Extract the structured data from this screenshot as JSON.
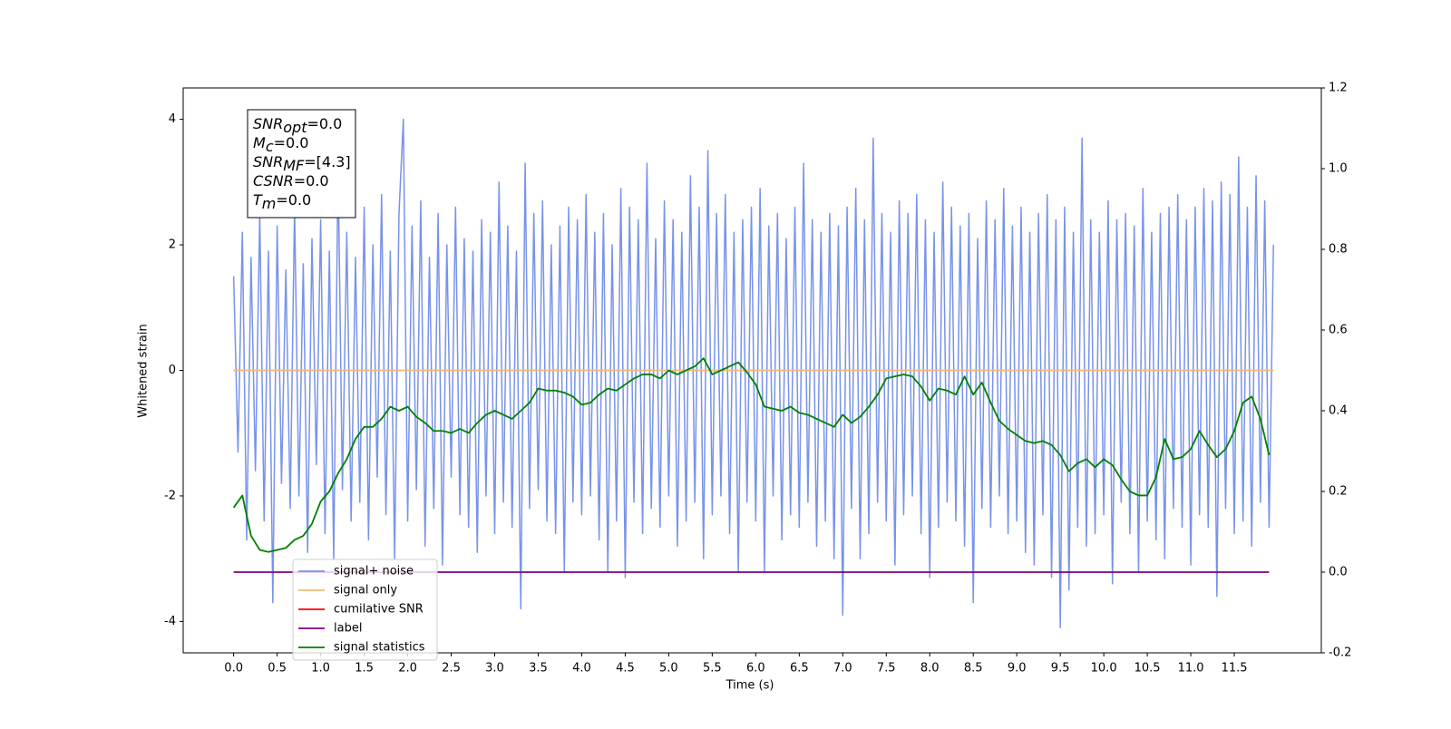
{
  "chart_data": {
    "type": "line",
    "xlabel": "Time (s)",
    "ylabel": "Whitened strain",
    "xlim": [
      -0.58,
      12.5
    ],
    "ylim": [
      -4.5,
      4.5
    ],
    "y2lim": [
      -0.2,
      1.2
    ],
    "xticks": [
      {
        "value": 0,
        "label": "0.0"
      },
      0.5,
      {
        "value": 1,
        "label": "1.0"
      },
      1.5,
      {
        "value": 2,
        "label": "2.0"
      },
      2.5,
      {
        "value": 3,
        "label": "3.0"
      },
      3.5,
      {
        "value": 4,
        "label": "4.0"
      },
      4.5,
      {
        "value": 5,
        "label": "5.0"
      },
      5.5,
      {
        "value": 6,
        "label": "6.0"
      },
      6.5,
      {
        "value": 7,
        "label": "7.0"
      },
      7.5,
      {
        "value": 8,
        "label": "8.0"
      },
      8.5,
      {
        "value": 9,
        "label": "9.0"
      },
      9.5,
      {
        "value": 10,
        "label": "10.0"
      },
      10.5,
      {
        "value": 11,
        "label": "11.0"
      },
      11.5
    ],
    "yticks": [
      -4,
      -2,
      0,
      2,
      4
    ],
    "y2ticks": [
      -0.2,
      {
        "value": 0,
        "label": "0.0"
      },
      0.2,
      0.4,
      0.6,
      0.8,
      {
        "value": 1,
        "label": "1.0"
      },
      1.2
    ],
    "grid": false,
    "annotation": [
      {
        "name": "SNR",
        "sub": "opt",
        "text": "=0.0"
      },
      {
        "name": "M",
        "sub": "c",
        "text": "=0.0"
      },
      {
        "name": "SNR",
        "sub": "MF",
        "text": "=[4.3]"
      },
      {
        "name": "CSNR",
        "text": "=0.0"
      },
      {
        "name": "T",
        "sub": "m",
        "text": "=0.0"
      }
    ],
    "series": [
      {
        "name": "signal+ noise",
        "color": "#7893e8",
        "x": [
          0,
          0.05,
          0.1,
          0.15,
          0.2,
          0.25,
          0.3,
          0.35,
          0.4,
          0.45,
          0.5,
          0.55,
          0.6,
          0.65,
          0.7,
          0.75,
          0.8,
          0.85,
          0.9,
          0.95,
          1,
          1.05,
          1.1,
          1.15,
          1.2,
          1.25,
          1.3,
          1.35,
          1.4,
          1.45,
          1.5,
          1.55,
          1.6,
          1.65,
          1.7,
          1.75,
          1.8,
          1.85,
          1.9,
          1.95,
          2,
          2.05,
          2.1,
          2.15,
          2.2,
          2.25,
          2.3,
          2.35,
          2.4,
          2.45,
          2.5,
          2.55,
          2.6,
          2.65,
          2.7,
          2.75,
          2.8,
          2.85,
          2.9,
          2.95,
          3,
          3.05,
          3.1,
          3.15,
          3.2,
          3.25,
          3.3,
          3.35,
          3.4,
          3.45,
          3.5,
          3.55,
          3.6,
          3.65,
          3.7,
          3.75,
          3.8,
          3.85,
          3.9,
          3.95,
          4,
          4.05,
          4.1,
          4.15,
          4.2,
          4.25,
          4.3,
          4.35,
          4.4,
          4.45,
          4.5,
          4.55,
          4.6,
          4.65,
          4.7,
          4.75,
          4.8,
          4.85,
          4.9,
          4.95,
          5,
          5.05,
          5.1,
          5.15,
          5.2,
          5.25,
          5.3,
          5.35,
          5.4,
          5.45,
          5.5,
          5.55,
          5.6,
          5.65,
          5.7,
          5.75,
          5.8,
          5.85,
          5.9,
          5.95,
          6,
          6.05,
          6.1,
          6.15,
          6.2,
          6.25,
          6.3,
          6.35,
          6.4,
          6.45,
          6.5,
          6.55,
          6.6,
          6.65,
          6.7,
          6.75,
          6.8,
          6.85,
          6.9,
          6.95,
          7,
          7.05,
          7.1,
          7.15,
          7.2,
          7.25,
          7.3,
          7.35,
          7.4,
          7.45,
          7.5,
          7.55,
          7.6,
          7.65,
          7.7,
          7.75,
          7.8,
          7.85,
          7.9,
          7.95,
          8,
          8.05,
          8.1,
          8.15,
          8.2,
          8.25,
          8.3,
          8.35,
          8.4,
          8.45,
          8.5,
          8.55,
          8.6,
          8.65,
          8.7,
          8.75,
          8.8,
          8.85,
          8.9,
          8.95,
          9,
          9.05,
          9.1,
          9.15,
          9.2,
          9.25,
          9.3,
          9.35,
          9.4,
          9.45,
          9.5,
          9.55,
          9.6,
          9.65,
          9.7,
          9.75,
          9.8,
          9.85,
          9.9,
          9.95,
          10,
          10.05,
          10.1,
          10.15,
          10.2,
          10.25,
          10.3,
          10.35,
          10.4,
          10.45,
          10.5,
          10.55,
          10.6,
          10.65,
          10.7,
          10.75,
          10.8,
          10.85,
          10.9,
          10.95,
          11,
          11.05,
          11.1,
          11.15,
          11.2,
          11.25,
          11.3,
          11.35,
          11.4,
          11.45,
          11.5,
          11.55,
          11.6,
          11.65,
          11.7,
          11.75,
          11.8,
          11.85,
          11.9,
          11.95
        ],
        "values": [
          1.5,
          -1.3,
          2.2,
          -2.7,
          1.8,
          -1.6,
          2.5,
          -2.4,
          1.9,
          -3.7,
          2.3,
          -1.8,
          1.6,
          -2.2,
          2.6,
          -2.0,
          1.7,
          -2.9,
          2.1,
          -1.5,
          2.4,
          -2.6,
          1.9,
          -3.0,
          3.3,
          -1.9,
          2.2,
          -2.4,
          1.8,
          -2.1,
          2.6,
          -2.7,
          2.0,
          -1.7,
          2.8,
          -2.3,
          1.9,
          -3.0,
          2.5,
          4.0,
          -2.4,
          2.3,
          -1.9,
          2.7,
          -2.8,
          1.8,
          -2.2,
          2.5,
          -3.1,
          2.0,
          -1.7,
          2.6,
          -2.3,
          2.1,
          -2.5,
          1.9,
          -2.9,
          2.4,
          -2.0,
          2.2,
          -2.6,
          3.0,
          -2.1,
          2.3,
          -2.5,
          1.9,
          -3.8,
          3.3,
          -2.2,
          2.5,
          -1.9,
          2.7,
          -2.4,
          2.0,
          -2.6,
          2.3,
          -3.2,
          2.6,
          -2.1,
          2.4,
          -2.3,
          2.8,
          -2.0,
          2.2,
          -2.7,
          2.5,
          -3.2,
          2.0,
          -2.4,
          2.9,
          -3.3,
          2.6,
          -2.1,
          2.4,
          -2.6,
          3.3,
          -2.2,
          2.1,
          -2.5,
          2.7,
          -2.0,
          2.4,
          -2.8,
          2.2,
          -2.4,
          3.1,
          -2.1,
          2.6,
          -3.0,
          3.5,
          -2.3,
          2.5,
          -2.0,
          2.8,
          -2.6,
          2.2,
          -3.2,
          2.4,
          -2.1,
          2.6,
          -2.4,
          2.9,
          -3.2,
          2.3,
          -2.0,
          2.5,
          -2.7,
          2.1,
          -2.3,
          2.6,
          -2.5,
          3.3,
          -2.1,
          2.4,
          -2.8,
          2.2,
          -2.4,
          2.5,
          -3.0,
          2.3,
          -3.9,
          2.6,
          -2.2,
          2.9,
          -3.0,
          2.4,
          -2.6,
          3.7,
          -2.1,
          2.5,
          -2.4,
          2.2,
          -3.1,
          2.7,
          -2.3,
          2.5,
          -2.0,
          2.8,
          -2.6,
          2.4,
          -3.3,
          2.2,
          -2.5,
          3.0,
          -2.1,
          2.6,
          -2.4,
          2.3,
          -2.8,
          2.5,
          -3.7,
          2.1,
          -2.2,
          2.7,
          -2.5,
          2.4,
          -2.0,
          2.9,
          -2.6,
          2.3,
          -2.4,
          2.6,
          -2.9,
          2.2,
          -3.1,
          2.5,
          -2.3,
          2.8,
          -3.3,
          2.4,
          -4.1,
          2.6,
          -3.5,
          2.2,
          -2.5,
          3.7,
          -2.8,
          2.4,
          -2.6,
          2.2,
          -2.3,
          2.7,
          -3.4,
          2.4,
          -2.1,
          2.5,
          -2.6,
          2.3,
          -3.2,
          2.9,
          -2.4,
          2.2,
          -2.7,
          2.5,
          -3.0,
          2.6,
          -2.2,
          2.8,
          -2.5,
          2.4,
          -3.1,
          2.6,
          -2.3,
          2.9,
          -2.5,
          2.7,
          -3.6,
          3.0,
          -2.2,
          2.8,
          -2.6,
          3.4,
          -2.4,
          2.6,
          -2.8,
          3.1,
          -2.1,
          2.7,
          -2.5,
          2.0
        ]
      },
      {
        "name": "signal only",
        "color": "#f2b878",
        "x": [
          0,
          11.95
        ],
        "values": [
          0,
          0
        ]
      },
      {
        "name": "cumilative SNR",
        "color": "#ff0000"
      },
      {
        "name": "label",
        "color": "#800080",
        "axis": "y2",
        "x": [
          0,
          11.9
        ],
        "values": [
          0,
          0
        ]
      },
      {
        "name": "signal statistics",
        "color": "#008000",
        "axis": "y2",
        "x": [
          0,
          0.1,
          0.2,
          0.3,
          0.4,
          0.5,
          0.6,
          0.7,
          0.8,
          0.9,
          1,
          1.1,
          1.2,
          1.3,
          1.4,
          1.5,
          1.6,
          1.7,
          1.8,
          1.9,
          2,
          2.1,
          2.2,
          2.3,
          2.4,
          2.5,
          2.6,
          2.7,
          2.8,
          2.9,
          3,
          3.1,
          3.2,
          3.3,
          3.4,
          3.5,
          3.6,
          3.7,
          3.8,
          3.9,
          4,
          4.1,
          4.2,
          4.3,
          4.4,
          4.5,
          4.6,
          4.7,
          4.8,
          4.9,
          5,
          5.1,
          5.2,
          5.3,
          5.4,
          5.5,
          5.6,
          5.7,
          5.8,
          5.9,
          6,
          6.1,
          6.2,
          6.3,
          6.4,
          6.5,
          6.6,
          6.7,
          6.8,
          6.9,
          7,
          7.1,
          7.2,
          7.3,
          7.4,
          7.5,
          7.6,
          7.7,
          7.8,
          7.9,
          8,
          8.1,
          8.2,
          8.3,
          8.4,
          8.5,
          8.6,
          8.7,
          8.8,
          8.9,
          9,
          9.1,
          9.2,
          9.3,
          9.4,
          9.5,
          9.6,
          9.7,
          9.8,
          9.9,
          10,
          10.1,
          10.2,
          10.3,
          10.4,
          10.5,
          10.6,
          10.7,
          10.8,
          10.9,
          11,
          11.1,
          11.2,
          11.3,
          11.4,
          11.5,
          11.6,
          11.7,
          11.8,
          11.9
        ],
        "values": [
          0.16,
          0.19,
          0.09,
          0.055,
          0.05,
          0.055,
          0.06,
          0.08,
          0.09,
          0.12,
          0.175,
          0.2,
          0.245,
          0.28,
          0.33,
          0.36,
          0.36,
          0.38,
          0.41,
          0.4,
          0.41,
          0.385,
          0.37,
          0.35,
          0.35,
          0.345,
          0.355,
          0.345,
          0.37,
          0.39,
          0.4,
          0.39,
          0.38,
          0.4,
          0.42,
          0.455,
          0.45,
          0.45,
          0.445,
          0.435,
          0.415,
          0.42,
          0.44,
          0.455,
          0.45,
          0.465,
          0.48,
          0.49,
          0.49,
          0.48,
          0.5,
          0.49,
          0.5,
          0.51,
          0.53,
          0.49,
          0.5,
          0.51,
          0.52,
          0.495,
          0.465,
          0.41,
          0.405,
          0.4,
          0.41,
          0.395,
          0.39,
          0.38,
          0.37,
          0.36,
          0.39,
          0.37,
          0.385,
          0.41,
          0.44,
          0.48,
          0.485,
          0.49,
          0.485,
          0.46,
          0.425,
          0.455,
          0.45,
          0.44,
          0.485,
          0.44,
          0.47,
          0.42,
          0.375,
          0.355,
          0.34,
          0.325,
          0.32,
          0.325,
          0.315,
          0.29,
          0.25,
          0.27,
          0.28,
          0.26,
          0.28,
          0.265,
          0.23,
          0.2,
          0.19,
          0.19,
          0.235,
          0.33,
          0.28,
          0.285,
          0.305,
          0.35,
          0.315,
          0.285,
          0.305,
          0.35,
          0.42,
          0.435,
          0.38,
          0.29
        ]
      }
    ]
  }
}
